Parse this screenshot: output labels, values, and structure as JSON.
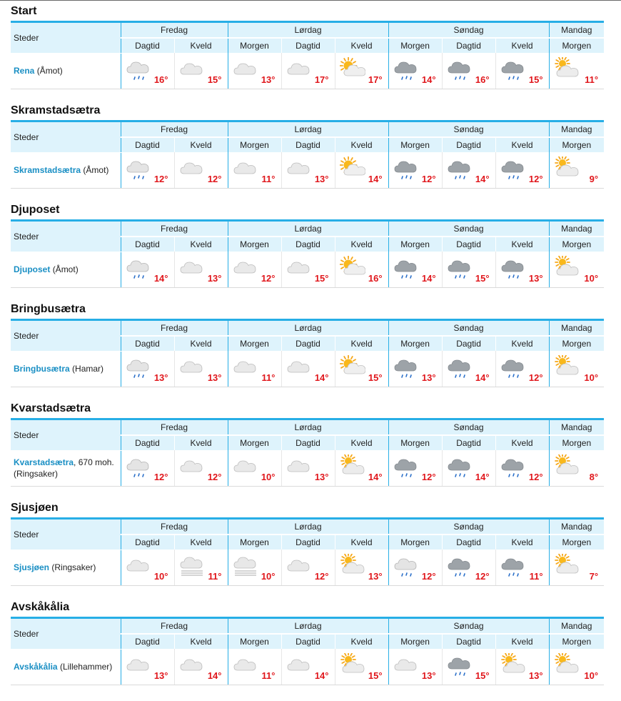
{
  "header_labels": {
    "places": "Steder",
    "days": [
      "Fredag",
      "Lørdag",
      "Søndag",
      "Mandag"
    ],
    "periods": [
      "Dagtid",
      "Kveld",
      "Morgen",
      "Dagtid",
      "Kveld",
      "Morgen",
      "Dagtid",
      "Kveld",
      "Morgen"
    ]
  },
  "icon_legend": {
    "cloud": "cloud-icon",
    "cloud-light-rain": "cloud-light-rain-icon",
    "dark-cloud-rain": "dark-cloud-rain-icon",
    "sun-cloud": "partly-sunny-icon",
    "sun-partly": "sun-behind-cloud-icon",
    "fog": "fog-icon"
  },
  "colors": {
    "accent": "#27aee6",
    "header_bg": "#def3fc",
    "temp": "#e0161b",
    "link": "#1a8fc4"
  },
  "sections": [
    {
      "title": "Start",
      "place": {
        "name": "Rena",
        "extra": "(Åmot)"
      },
      "forecast": [
        {
          "icon": "cloud-light-rain",
          "temp": "16°"
        },
        {
          "icon": "cloud",
          "temp": "15°"
        },
        {
          "icon": "cloud",
          "temp": "13°"
        },
        {
          "icon": "cloud",
          "temp": "17°"
        },
        {
          "icon": "sun-cloud",
          "temp": "17°"
        },
        {
          "icon": "dark-cloud-rain",
          "temp": "14°"
        },
        {
          "icon": "dark-cloud-rain",
          "temp": "16°"
        },
        {
          "icon": "dark-cloud-rain",
          "temp": "15°"
        },
        {
          "icon": "sun-partly",
          "temp": "11°"
        }
      ]
    },
    {
      "title": "Skramstadsætra",
      "place": {
        "name": "Skramstadsætra",
        "extra": "(Åmot)"
      },
      "forecast": [
        {
          "icon": "cloud-light-rain",
          "temp": "12°"
        },
        {
          "icon": "cloud",
          "temp": "12°"
        },
        {
          "icon": "cloud",
          "temp": "11°"
        },
        {
          "icon": "cloud",
          "temp": "13°"
        },
        {
          "icon": "sun-cloud",
          "temp": "14°"
        },
        {
          "icon": "dark-cloud-rain",
          "temp": "12°"
        },
        {
          "icon": "dark-cloud-rain",
          "temp": "14°"
        },
        {
          "icon": "dark-cloud-rain",
          "temp": "12°"
        },
        {
          "icon": "sun-partly",
          "temp": "9°"
        }
      ]
    },
    {
      "title": "Djuposet",
      "place": {
        "name": "Djuposet",
        "extra": "(Åmot)"
      },
      "forecast": [
        {
          "icon": "cloud-light-rain",
          "temp": "14°"
        },
        {
          "icon": "cloud",
          "temp": "13°"
        },
        {
          "icon": "cloud",
          "temp": "12°"
        },
        {
          "icon": "cloud",
          "temp": "15°"
        },
        {
          "icon": "sun-cloud",
          "temp": "16°"
        },
        {
          "icon": "dark-cloud-rain",
          "temp": "14°"
        },
        {
          "icon": "dark-cloud-rain",
          "temp": "15°"
        },
        {
          "icon": "dark-cloud-rain",
          "temp": "13°"
        },
        {
          "icon": "sun-partly",
          "temp": "10°"
        }
      ]
    },
    {
      "title": "Bringbusætra",
      "place": {
        "name": "Bringbusætra",
        "extra": "(Hamar)"
      },
      "forecast": [
        {
          "icon": "cloud-light-rain",
          "temp": "13°"
        },
        {
          "icon": "cloud",
          "temp": "13°"
        },
        {
          "icon": "cloud",
          "temp": "11°"
        },
        {
          "icon": "cloud",
          "temp": "14°"
        },
        {
          "icon": "sun-cloud",
          "temp": "15°"
        },
        {
          "icon": "dark-cloud-rain",
          "temp": "13°"
        },
        {
          "icon": "dark-cloud-rain",
          "temp": "14°"
        },
        {
          "icon": "dark-cloud-rain",
          "temp": "12°"
        },
        {
          "icon": "sun-partly",
          "temp": "10°"
        }
      ]
    },
    {
      "title": "Kvarstadsætra",
      "place": {
        "name": "Kvarstadsætra",
        "extra": ", 670 moh.",
        "extra2": "(Ringsaker)"
      },
      "forecast": [
        {
          "icon": "cloud-light-rain",
          "temp": "12°"
        },
        {
          "icon": "cloud",
          "temp": "12°"
        },
        {
          "icon": "cloud",
          "temp": "10°"
        },
        {
          "icon": "cloud",
          "temp": "13°"
        },
        {
          "icon": "sun-partly",
          "temp": "14°"
        },
        {
          "icon": "dark-cloud-rain",
          "temp": "12°"
        },
        {
          "icon": "dark-cloud-rain",
          "temp": "14°"
        },
        {
          "icon": "dark-cloud-rain",
          "temp": "12°"
        },
        {
          "icon": "sun-partly",
          "temp": "8°"
        }
      ]
    },
    {
      "title": "Sjusjøen",
      "place": {
        "name": "Sjusjøen",
        "extra": "(Ringsaker)"
      },
      "forecast": [
        {
          "icon": "cloud",
          "temp": "10°"
        },
        {
          "icon": "fog",
          "temp": "11°"
        },
        {
          "icon": "fog",
          "temp": "10°"
        },
        {
          "icon": "cloud",
          "temp": "12°"
        },
        {
          "icon": "sun-partly",
          "temp": "13°"
        },
        {
          "icon": "cloud-light-rain",
          "temp": "12°"
        },
        {
          "icon": "dark-cloud-rain",
          "temp": "12°"
        },
        {
          "icon": "dark-cloud-rain",
          "temp": "11°"
        },
        {
          "icon": "sun-partly",
          "temp": "7°"
        }
      ]
    },
    {
      "title": "Avskåkålia",
      "place": {
        "name": "Avskåkålia",
        "extra": "(Lillehammer)"
      },
      "forecast": [
        {
          "icon": "cloud",
          "temp": "13°"
        },
        {
          "icon": "cloud",
          "temp": "14°"
        },
        {
          "icon": "cloud",
          "temp": "11°"
        },
        {
          "icon": "cloud",
          "temp": "14°"
        },
        {
          "icon": "sun-partly",
          "temp": "15°"
        },
        {
          "icon": "cloud",
          "temp": "13°"
        },
        {
          "icon": "dark-cloud-rain",
          "temp": "15°"
        },
        {
          "icon": "sun-partly",
          "temp": "13°"
        },
        {
          "icon": "sun-partly",
          "temp": "10°"
        }
      ]
    }
  ]
}
